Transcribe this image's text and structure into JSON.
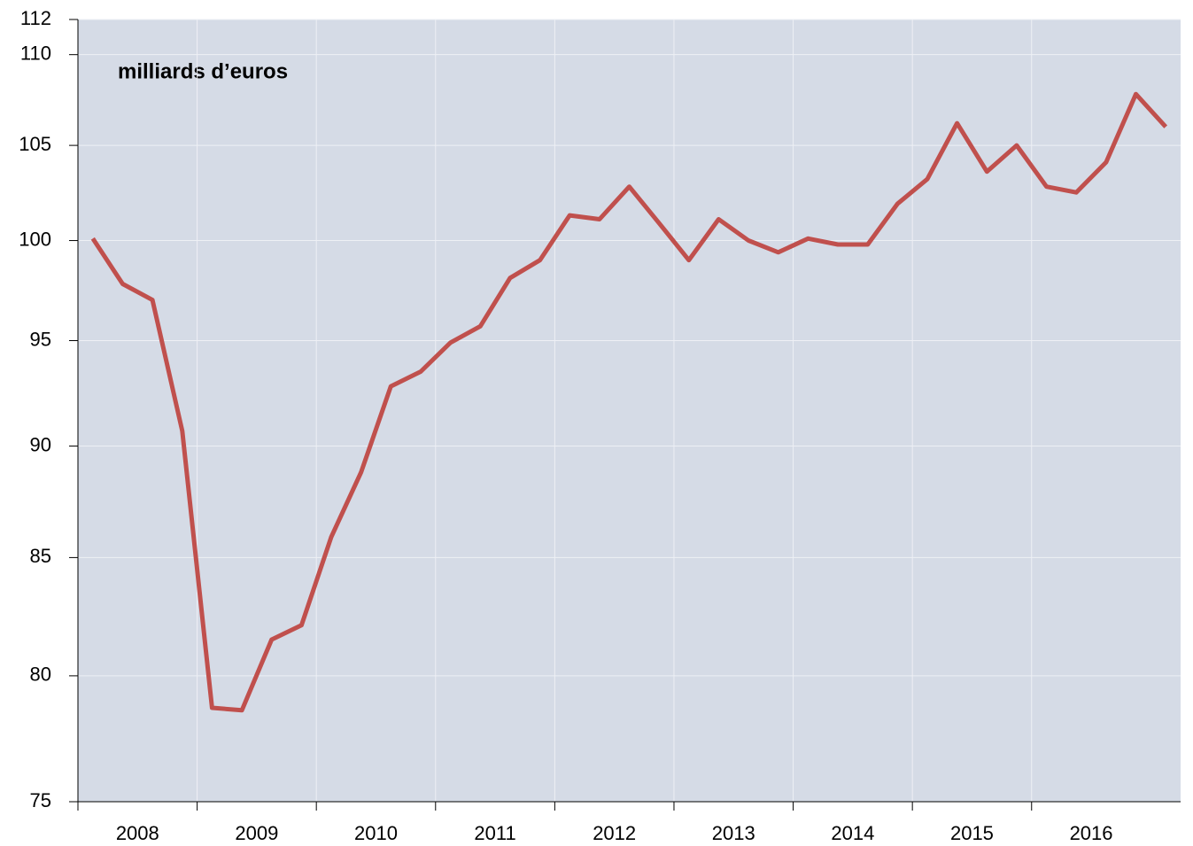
{
  "chart_data": {
    "type": "line",
    "annotation": "milliards d’euros",
    "categories": [
      "2008",
      null,
      null,
      null,
      "2009",
      null,
      null,
      null,
      "2010",
      null,
      null,
      null,
      "2011",
      null,
      null,
      null,
      "2012",
      null,
      null,
      null,
      "2013",
      null,
      null,
      null,
      "2014",
      null,
      null,
      null,
      "2015",
      null,
      null,
      null,
      "2016",
      null,
      null,
      null,
      null
    ],
    "series": [
      {
        "color": "#c0504d",
        "values": [
          100.1,
          97.8,
          97.0,
          90.7,
          78.7,
          78.6,
          81.5,
          82.1,
          85.9,
          88.8,
          92.8,
          93.5,
          94.9,
          95.7,
          98.1,
          99.0,
          101.3,
          101.1,
          102.8,
          100.9,
          99.0,
          101.1,
          100.0,
          99.4,
          100.1,
          99.8,
          99.8,
          101.9,
          103.2,
          106.2,
          103.6,
          105.0,
          102.8,
          102.5,
          104.1,
          107.8,
          106.0
        ]
      }
    ],
    "ylim": [
      75,
      112
    ],
    "yticks": [
      75,
      80,
      85,
      90,
      95,
      100,
      105,
      110,
      112
    ],
    "log": true,
    "grid": true
  }
}
